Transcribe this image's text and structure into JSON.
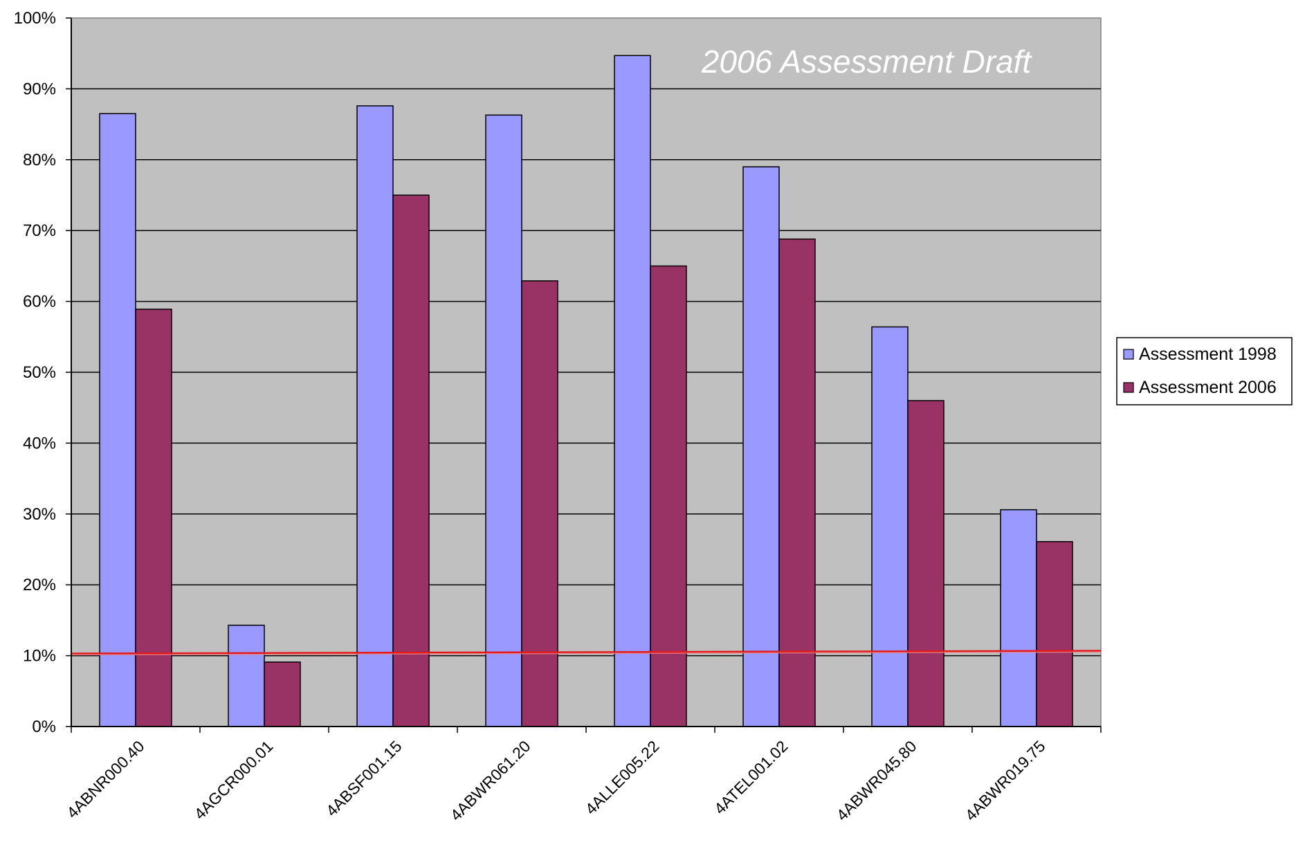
{
  "chart_data": {
    "type": "bar",
    "title": "",
    "xlabel": "",
    "ylabel": "",
    "categories": [
      "4ABNR000.40",
      "4AGCR000.01",
      "4ABSF001.15",
      "4ABWR061.20",
      "4ALLE005.22",
      "4ATEL001.02",
      "4ABWR045.80",
      "4ABWR019.75"
    ],
    "series": [
      {
        "name": "Assessment 1998",
        "color": "#9999ff",
        "values": [
          86.5,
          14.3,
          87.6,
          86.3,
          94.7,
          79.0,
          56.4,
          30.6
        ]
      },
      {
        "name": "Assessment 2006",
        "color": "#993366",
        "values": [
          58.9,
          9.1,
          75.0,
          62.9,
          65.0,
          68.8,
          46.0,
          26.1
        ]
      }
    ],
    "ylim": [
      0,
      100
    ],
    "yticks": [
      0,
      10,
      20,
      30,
      40,
      50,
      60,
      70,
      80,
      90,
      100
    ],
    "ytick_format": "%",
    "grid": true,
    "background": "#c0c0c0",
    "reference_line": {
      "value": 10.5,
      "color": "#e31a1c"
    },
    "annotation": "2006 Assessment Draft",
    "legend_position": "right"
  }
}
